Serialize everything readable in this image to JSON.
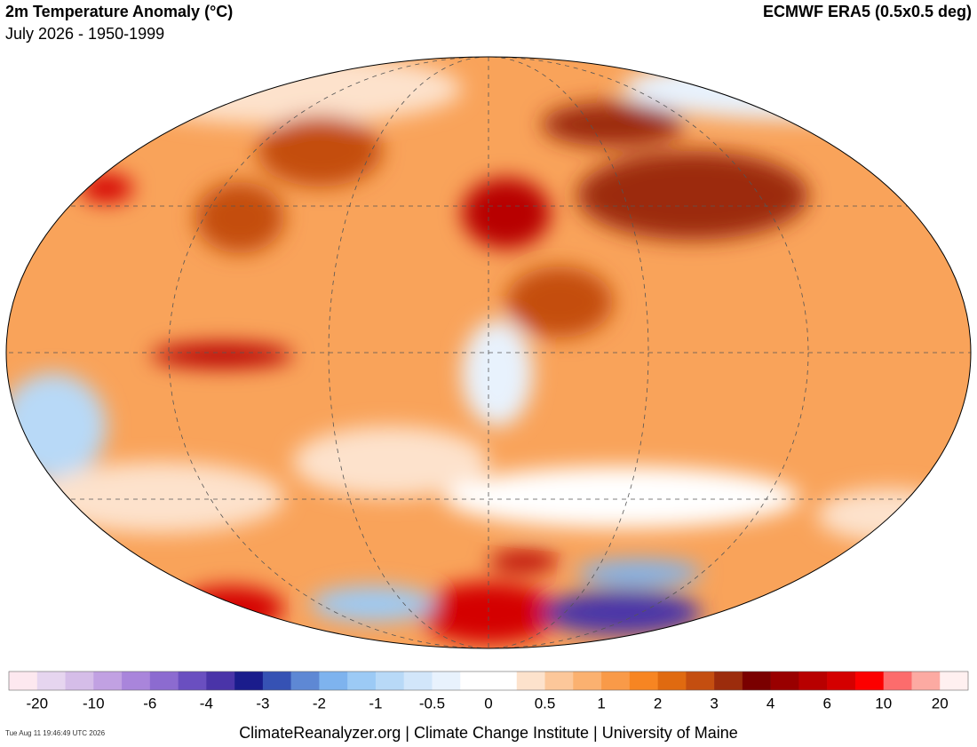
{
  "header": {
    "title": "2m Temperature Anomaly (°C)",
    "subtitle": "July 2026 - 1950-1999",
    "dataset": "ECMWF ERA5 (0.5x0.5 deg)"
  },
  "colorbar": {
    "colors": [
      "#fde8ef",
      "#e6d5ef",
      "#d5bde8",
      "#c1a1e2",
      "#a985db",
      "#8c6bd0",
      "#6a4fc0",
      "#4a34a8",
      "#1a1c8c",
      "#3652b4",
      "#5e88d4",
      "#7eb3ee",
      "#9ccaf5",
      "#b8d9f7",
      "#d2e6fa",
      "#e8f2fd",
      "#ffffff",
      "#ffffff",
      "#fde2cc",
      "#fcc79a",
      "#fbb170",
      "#f99a48",
      "#f78522",
      "#e06a10",
      "#c44e10",
      "#9c2c0c",
      "#7a0000",
      "#990000",
      "#b80000",
      "#d40000",
      "#fc0000",
      "#fc6c6c",
      "#fcaaa2",
      "#fff0f0"
    ],
    "labels": [
      -20,
      -10,
      -6,
      -4,
      -3,
      -2,
      -1,
      -0.5,
      0,
      0.5,
      1,
      2,
      3,
      4,
      6,
      10,
      20
    ]
  },
  "footer": {
    "timestamp": "Tue Aug 11 19:46:49 UTC 2026",
    "credits": "ClimateReanalyzer.org | Climate Change Institute | University of Maine"
  }
}
